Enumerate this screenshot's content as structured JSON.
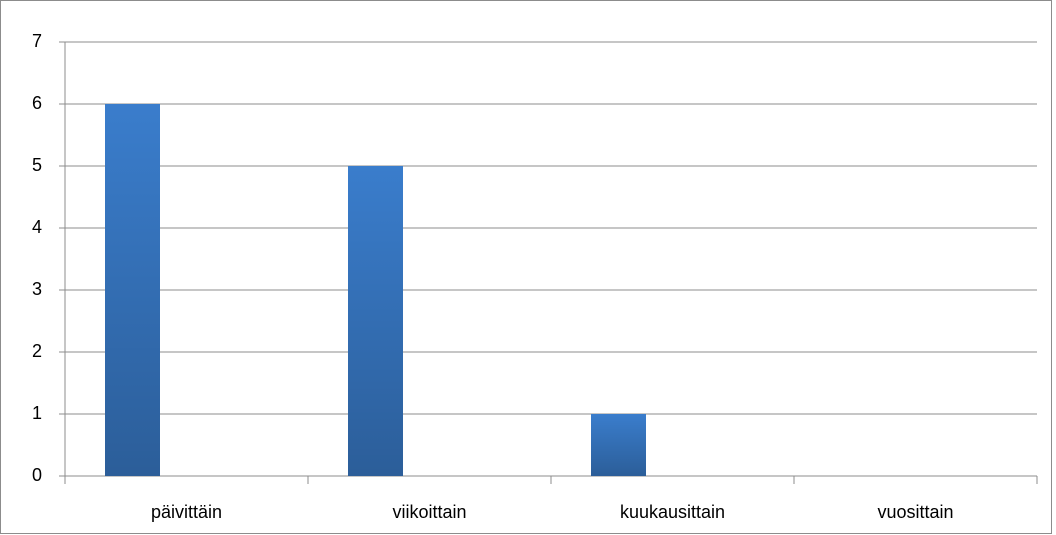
{
  "chart_data": {
    "type": "bar",
    "categories": [
      "päivittäin",
      "viikoittain",
      "kuukausittain",
      "vuosittain"
    ],
    "values": [
      6,
      5,
      1,
      0
    ],
    "color": "#3a7dcc",
    "ylim": [
      0,
      7
    ],
    "yticks": [
      0,
      1,
      2,
      3,
      4,
      5,
      6,
      7
    ],
    "grid": true
  }
}
